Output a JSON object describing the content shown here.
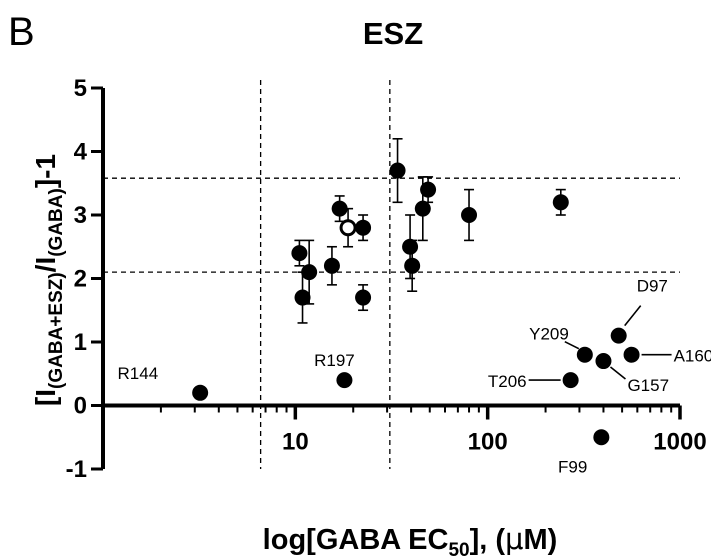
{
  "panel_label": "B",
  "chart_data": {
    "type": "scatter",
    "title": "ESZ",
    "xlabel": {
      "main": "log[GABA  EC",
      "sub": "50",
      "rest": "], (",
      "mu": "μ",
      "unit": "M)"
    },
    "ylabel": {
      "open": "[I",
      "sub1": "(GABA+ESZ)",
      "slash": "/I",
      "sub2": "(GABA)",
      "close": "]-1"
    },
    "x_scale": "log",
    "xlim": [
      1,
      1000
    ],
    "ylim": [
      -1,
      5
    ],
    "x_ticks": [
      10,
      100,
      1000
    ],
    "x_tick_labels": [
      "10",
      "100",
      "1000"
    ],
    "y_ticks": [
      -1,
      0,
      1,
      2,
      3,
      4,
      5
    ],
    "y_tick_labels": [
      "-1",
      "0",
      "1",
      "2",
      "3",
      "4",
      "5"
    ],
    "reference_lines": {
      "vertical": [
        6.6,
        31
      ],
      "horizontal": [
        2.1,
        3.58
      ]
    },
    "points": [
      {
        "x": 3.2,
        "y": 0.2,
        "label": "R144"
      },
      {
        "x": 18.0,
        "y": 0.4,
        "label": "R197"
      },
      {
        "x": 270,
        "y": 0.4,
        "label": "T206"
      },
      {
        "x": 320,
        "y": 0.8,
        "label": "Y209"
      },
      {
        "x": 400,
        "y": 0.7,
        "label": "G157"
      },
      {
        "x": 480,
        "y": 1.1,
        "label": "D97"
      },
      {
        "x": 560,
        "y": 0.8,
        "label": "A160"
      },
      {
        "x": 390,
        "y": -0.5,
        "label": "F99"
      },
      {
        "x": 10.5,
        "y": 2.4,
        "err": 0.2
      },
      {
        "x": 10.9,
        "y": 1.7,
        "err": 0.4
      },
      {
        "x": 11.8,
        "y": 2.1,
        "err": 0.5
      },
      {
        "x": 15.5,
        "y": 2.2,
        "err": 0.3
      },
      {
        "x": 17.0,
        "y": 3.1,
        "err": 0.2
      },
      {
        "x": 18.8,
        "y": 2.8,
        "err": 0.3,
        "open": true
      },
      {
        "x": 22.5,
        "y": 2.8,
        "err": 0.2
      },
      {
        "x": 22.5,
        "y": 1.7,
        "err": 0.2
      },
      {
        "x": 34.0,
        "y": 3.7,
        "err": 0.5
      },
      {
        "x": 39.5,
        "y": 2.5,
        "err": 0.5
      },
      {
        "x": 40.5,
        "y": 2.2,
        "err": 0.4
      },
      {
        "x": 46.0,
        "y": 3.1,
        "err": 0.5
      },
      {
        "x": 49.0,
        "y": 3.4,
        "err": 0.2
      },
      {
        "x": 80.0,
        "y": 3.0,
        "err": 0.4
      },
      {
        "x": 240,
        "y": 3.2,
        "err": 0.2
      }
    ]
  }
}
